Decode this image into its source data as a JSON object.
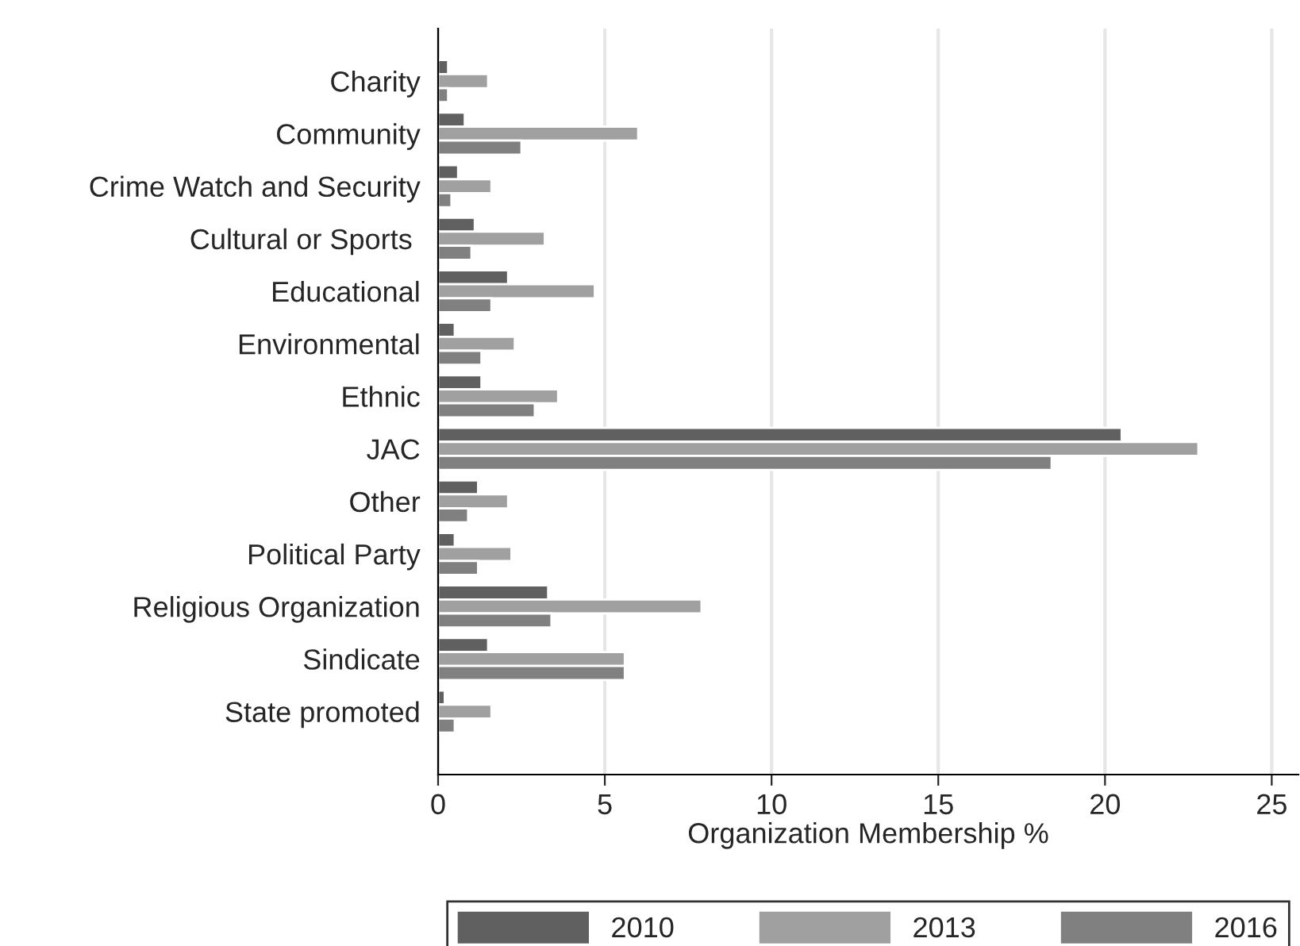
{
  "chart_data": {
    "type": "bar",
    "orientation": "horizontal",
    "xlabel": "Organization Membership %",
    "categories": [
      "Charity",
      "Community",
      "Crime Watch and Security",
      "Cultural or Sports ",
      "Educational",
      "Environmental",
      "Ethnic",
      "JAC",
      "Other",
      "Political Party",
      "Religious Organization",
      "Sindicate",
      "State promoted"
    ],
    "series": [
      {
        "name": "2010",
        "color": "#606060",
        "values": [
          0.3,
          0.8,
          0.6,
          1.1,
          2.1,
          0.5,
          1.3,
          20.5,
          1.2,
          0.5,
          3.3,
          1.5,
          0.2
        ]
      },
      {
        "name": "2013",
        "color": "#a0a0a0",
        "values": [
          1.5,
          6.0,
          1.6,
          3.2,
          4.7,
          2.3,
          3.6,
          22.8,
          2.1,
          2.2,
          7.9,
          5.6,
          1.6
        ]
      },
      {
        "name": "2016",
        "color": "#808080",
        "values": [
          0.3,
          2.5,
          0.4,
          1.0,
          1.6,
          1.3,
          2.9,
          18.4,
          0.9,
          1.2,
          3.4,
          5.6,
          0.5
        ]
      }
    ],
    "xlim": [
      0,
      25.8
    ],
    "xticks": [
      0,
      5,
      10,
      15,
      20,
      25
    ],
    "grid": "x",
    "legend": "bottom"
  }
}
